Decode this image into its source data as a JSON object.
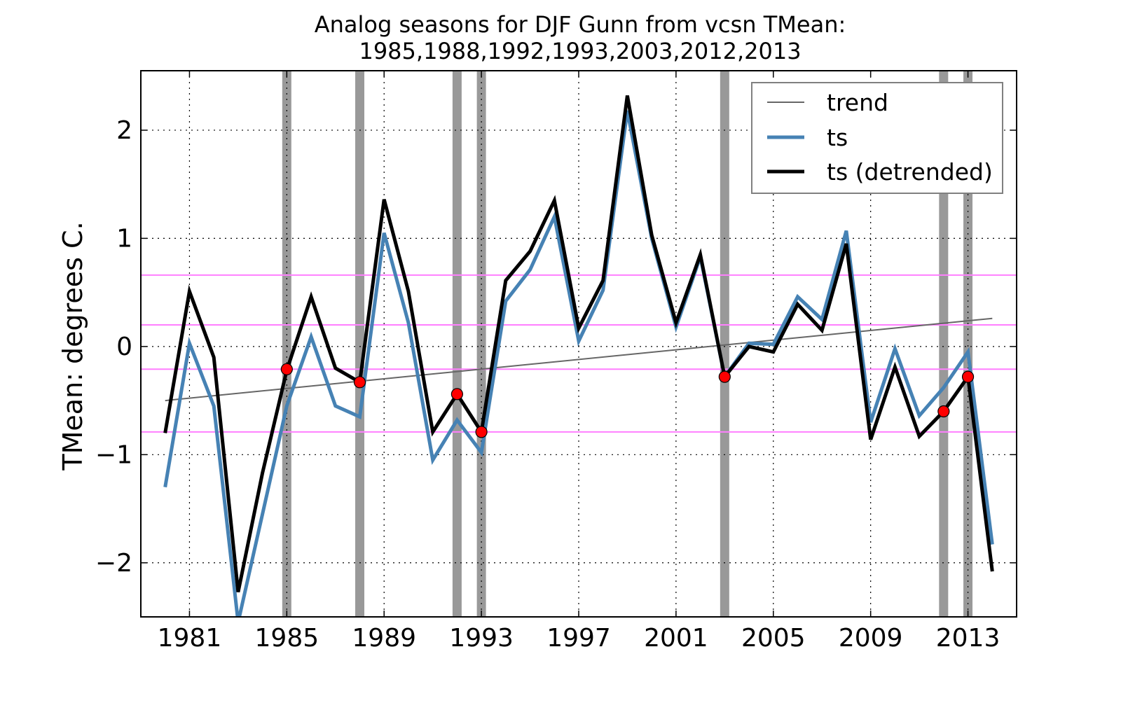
{
  "chart_data": {
    "type": "line",
    "title_line1": "Analog seasons for DJF Gunn from vcsn TMean:",
    "title_line2": "1985,1988,1992,1993,2003,2012,2013",
    "ylabel": "TMean: degrees C.",
    "xlim": [
      1979,
      2015
    ],
    "ylim": [
      -2.5,
      2.55
    ],
    "xticks": [
      1981,
      1985,
      1989,
      1993,
      1997,
      2001,
      2005,
      2009,
      2013
    ],
    "yticks": [
      2,
      1,
      0,
      -1,
      -2
    ],
    "ytick_labels": [
      "2",
      "1",
      "0",
      "−1",
      "−2"
    ],
    "grid": true,
    "legend_position": "top-right",
    "legend": [
      "trend",
      "ts",
      "ts (detrended)"
    ],
    "colors": {
      "trend": "#666666",
      "ts": "#4682b4",
      "ts_detrended": "#000000",
      "analog_bar": "#999999",
      "analog_bar_light": "#c2c2c2",
      "marker": "#ff0000",
      "quantile_line": "#ff7fff"
    },
    "x": [
      1980,
      1981,
      1982,
      1983,
      1984,
      1985,
      1986,
      1987,
      1988,
      1989,
      1990,
      1991,
      1992,
      1993,
      1994,
      1995,
      1996,
      1997,
      1998,
      1999,
      2000,
      2001,
      2002,
      2003,
      2004,
      2005,
      2006,
      2007,
      2008,
      2009,
      2010,
      2011,
      2012,
      2013,
      2014
    ],
    "series": [
      {
        "name": "ts",
        "values": [
          -1.3,
          0.03,
          -0.55,
          -2.55,
          -1.55,
          -0.55,
          0.09,
          -0.55,
          -0.65,
          1.05,
          0.22,
          -1.05,
          -0.68,
          -0.98,
          0.42,
          0.71,
          1.2,
          0.05,
          0.52,
          2.18,
          1.0,
          0.18,
          0.83,
          -0.28,
          0.03,
          0.02,
          0.46,
          0.25,
          1.07,
          -0.7,
          -0.02,
          -0.64,
          -0.38,
          -0.05,
          -1.83
        ]
      },
      {
        "name": "ts (detrended)",
        "values": [
          -0.8,
          0.51,
          -0.1,
          -2.27,
          -1.17,
          -0.22,
          0.46,
          -0.2,
          -0.33,
          1.36,
          0.51,
          -0.79,
          -0.44,
          -0.79,
          0.61,
          0.88,
          1.35,
          0.17,
          0.61,
          2.32,
          1.03,
          0.22,
          0.85,
          -0.28,
          0.0,
          -0.05,
          0.39,
          0.15,
          0.95,
          -0.86,
          -0.19,
          -0.83,
          -0.6,
          -0.28,
          -2.08
        ]
      },
      {
        "name": "trend",
        "x": [
          1980,
          2014
        ],
        "values": [
          -0.5,
          0.26
        ]
      }
    ],
    "analog_years": [
      1985,
      1988,
      1992,
      1993,
      2003,
      2012,
      2013
    ],
    "analog_markers": [
      {
        "x": 1985,
        "y": -0.21
      },
      {
        "x": 1988,
        "y": -0.33
      },
      {
        "x": 1992,
        "y": -0.44
      },
      {
        "x": 1993,
        "y": -0.79
      },
      {
        "x": 2003,
        "y": -0.28
      },
      {
        "x": 2012,
        "y": -0.6
      },
      {
        "x": 2013,
        "y": -0.28
      }
    ],
    "quantile_lines": [
      0.66,
      0.2,
      -0.21,
      -0.79
    ]
  }
}
